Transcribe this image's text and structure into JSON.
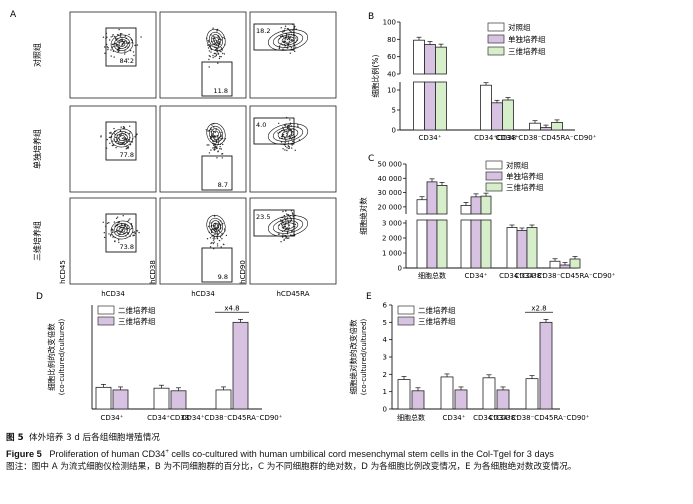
{
  "figure": {
    "panel_labels": [
      "A",
      "B",
      "C",
      "D",
      "E"
    ],
    "flow": {
      "row_labels": [
        "对照组",
        "单独培养组",
        "三维培养组"
      ],
      "x_axis_labels": [
        "hCD34",
        "hCD34",
        "hCD45RA"
      ],
      "y_axis_labels": [
        "hCD45",
        "hCD38",
        "hCD90"
      ],
      "gate_values": [
        [
          "84.2",
          "11.8",
          "18.2"
        ],
        [
          "77.8",
          "8.7",
          "4.0"
        ],
        [
          "73.8",
          "9.8",
          "23.5"
        ]
      ]
    },
    "caption": {
      "cn_prefix": "图 5",
      "cn_title": "体外培养 3 d 后各组细胞增殖情况",
      "en_prefix": "Figure 5",
      "en_title_1": "Proliferation of human CD34",
      "en_sup": "+",
      "en_title_2": " cells co-cultured with human umbilical cord mesenchymal stem cells in the Col-Tgel for 3 days",
      "note": "图注：图中 A 为流式细胞仪检测结果，B 为不同细胞群的百分比，C 为不同细胞群的绝对数，D 为各细胞比例改变情况，E 为各细胞绝对数改变情况。"
    }
  },
  "chart_data": [
    {
      "panel": "B",
      "type": "bar",
      "ylabel": "细胞比例(%)",
      "categories": [
        "CD34⁺",
        "CD34⁺CD38⁻",
        "CD34⁺CD38⁻CD45RA⁻CD90⁺"
      ],
      "series": [
        {
          "name": "对照组",
          "values": [
            79,
            11.2,
            1.7
          ],
          "color": "#ffffff"
        },
        {
          "name": "单独培养组",
          "values": [
            74,
            6.8,
            0.6
          ],
          "color": "#d8c2e2"
        },
        {
          "name": "三维培养组",
          "values": [
            71,
            7.5,
            1.9
          ],
          "color": "#d7eecb"
        }
      ],
      "ticks_upper": [
        "40",
        "60",
        "80",
        "100"
      ],
      "ticks_lower": [
        "0",
        "5",
        "10"
      ],
      "ylim_upper": [
        40,
        100
      ],
      "ylim_lower": [
        0,
        12
      ]
    },
    {
      "panel": "C",
      "type": "bar",
      "ylabel": "细胞绝对数",
      "categories": [
        "细胞总数",
        "CD34⁺",
        "CD34⁺CD38⁻",
        "CD34⁺CD38⁻CD45RA⁻CD90⁺"
      ],
      "series": [
        {
          "name": "对照组",
          "values": [
            25000,
            21000,
            2700,
            450
          ],
          "color": "#ffffff"
        },
        {
          "name": "单独培养组",
          "values": [
            37500,
            27000,
            2500,
            200
          ],
          "color": "#d8c2e2"
        },
        {
          "name": "三维培养组",
          "values": [
            35000,
            27500,
            2700,
            600
          ],
          "color": "#d7eecb"
        }
      ],
      "ticks_upper": [
        "20 000",
        "30 000",
        "40 000",
        "50 000"
      ],
      "ticks_lower": [
        "0",
        "1 000",
        "2 000",
        "3 000"
      ],
      "ylim_upper": [
        15000,
        50000
      ],
      "ylim_lower": [
        0,
        3200
      ]
    },
    {
      "panel": "D",
      "type": "bar",
      "ylabel": "细胞比例的改变倍数",
      "ylabel2": "(co-cultured/cultured)",
      "categories": [
        "CD34⁺",
        "CD34⁺CD38⁻",
        "CD34⁺CD38⁻CD45RA⁻CD90⁺"
      ],
      "series": [
        {
          "name": "二维培养组",
          "values": [
            1.25,
            1.2,
            1.1
          ],
          "color": "#ffffff"
        },
        {
          "name": "三维培养组",
          "values": [
            1.1,
            1.05,
            5.0
          ],
          "color": "#d8c2e2"
        }
      ],
      "annotation": "x4.8",
      "ylim": [
        0,
        6
      ]
    },
    {
      "panel": "E",
      "type": "bar",
      "ylabel": "细胞绝对数的改变倍数",
      "ylabel2": "(co-cultured/cultured)",
      "categories": [
        "细胞总数",
        "CD34⁺",
        "CD34⁺CD38⁻",
        "CD34⁺CD38⁻CD45RA⁻CD90⁺"
      ],
      "series": [
        {
          "name": "二维培养组",
          "values": [
            1.7,
            1.85,
            1.8,
            1.75
          ],
          "color": "#ffffff"
        },
        {
          "name": "三维培养组",
          "values": [
            1.05,
            1.1,
            1.1,
            5.0
          ],
          "color": "#d8c2e2"
        }
      ],
      "annotation": "x2.8",
      "yticks": [
        "0",
        "1",
        "2",
        "3",
        "4",
        "5",
        "6"
      ],
      "ylim": [
        0,
        6
      ]
    }
  ]
}
